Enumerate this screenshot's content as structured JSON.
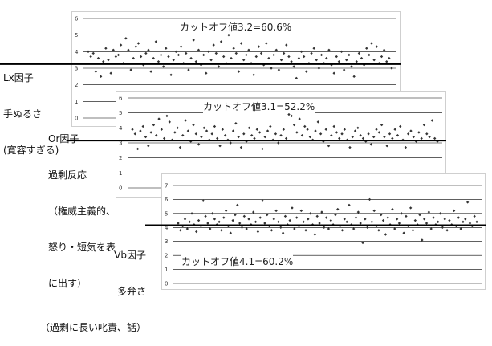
{
  "chart_data": [
    {
      "type": "scatter",
      "annotation": "カットオフ値3.2=60.6%",
      "cutoff": 3.2,
      "ylim": [
        0,
        6
      ],
      "yticks": [
        "0",
        "1",
        "2",
        "3",
        "4",
        "5",
        "6"
      ],
      "side_label": [
        "Lx因子",
        "手ぬるさ",
        "(寛容すぎる)"
      ],
      "points": [
        4,
        3.7,
        3.9,
        2.8,
        3.6,
        2.5,
        3.4,
        4.2,
        3.5,
        2.7,
        4.1,
        3.7,
        3.8,
        4.4,
        3.3,
        4.8,
        4.1,
        2.9,
        3.6,
        4.3,
        4.5,
        3.7,
        3.2,
        3.9,
        4.1,
        2.8,
        3.6,
        4.6,
        3.4,
        3.8,
        3.1,
        4.2,
        3.7,
        2.6,
        3.5,
        4,
        3.8,
        4.3,
        3.3,
        3.9,
        2.9,
        3.6,
        4.7,
        3.4,
        4.1,
        3.2,
        3.8,
        2.7,
        4,
        3.5,
        4.4,
        3.9,
        3.1,
        4.6,
        3.7,
        3.3,
        5,
        3.6,
        4.2,
        3.9,
        2.8,
        4.5,
        3.5,
        3.8,
        4.1,
        3.3,
        2.6,
        3.7,
        4.3,
        3.9,
        3.2,
        4.5,
        3.6,
        3,
        3.8,
        4.1,
        2.9,
        3.5,
        3.9,
        4.4,
        3.7,
        3.4,
        3.1,
        2.4,
        3.6,
        4,
        3.7,
        2.8,
        3.3,
        3.9,
        4.2,
        3.5,
        3,
        3.8,
        3.3,
        3.6,
        4.1,
        3.2,
        2.7,
        3.7,
        3.4,
        4,
        2.9,
        3.5,
        3.8,
        3.1,
        2.5,
        3.4,
        3.9,
        3.6,
        3.2,
        4.2,
        3.8,
        4.5,
        3.5,
        4.3,
        3.3,
        3.7,
        4.1,
        3.4,
        3.6,
        3
      ]
    },
    {
      "type": "scatter",
      "annotation": "カットオフ値3.1=52.2%",
      "cutoff": 3.1,
      "ylim": [
        0,
        6
      ],
      "yticks": [
        "0",
        "1",
        "2",
        "3",
        "4",
        "5",
        "6"
      ],
      "side_label": [
        "Or因子",
        "過剰反応",
        "（権威主義的、",
        "怒り・短気を表",
        "に出す）"
      ],
      "points": [
        3.9,
        3.6,
        2.6,
        3.8,
        4.1,
        3.4,
        2.8,
        3.7,
        4.2,
        3.5,
        4.6,
        3.9,
        3.3,
        4.8,
        4.4,
        3.2,
        3.7,
        4,
        2.7,
        3.5,
        4.5,
        3.8,
        3.1,
        4.2,
        3.6,
        2.9,
        3.4,
        4,
        3.8,
        3.2,
        3.6,
        4.1,
        3.3,
        2.8,
        3.9,
        3.5,
        3.2,
        3,
        3.8,
        4.3,
        3.4,
        2.7,
        3.6,
        3.1,
        4,
        3.5,
        3.3,
        3.9,
        3.7,
        2.6,
        3.4,
        3.8,
        4.1,
        3.2,
        3.6,
        3,
        3.5,
        3.9,
        3.3,
        4.9,
        4.8,
        4.2,
        3.7,
        4.6,
        3.5,
        4.1,
        3.9,
        3.4,
        3.2,
        3.8,
        4.4,
        3.6,
        3.1,
        3.9,
        2.8,
        3.5,
        4.1,
        3.7,
        3.3,
        3.6,
        3.9,
        3.2,
        2.7,
        3.4,
        3.8,
        4,
        3.5,
        3.3,
        3.1,
        3.6,
        2.9,
        3.4,
        3.9,
        3.7,
        4.2,
        3.4,
        2.8,
        3.6,
        3.3,
        3.9,
        3.5,
        4.1,
        3.2,
        2.7,
        3.6,
        3.8,
        3.4,
        3.1,
        3.7,
        3.3,
        4.2,
        3.6,
        3.4,
        4.5,
        3.3,
        3.1
      ]
    },
    {
      "type": "scatter",
      "annotation": "カットオフ値4.1=60.2%",
      "cutoff": 4.1,
      "ylim": [
        0,
        7
      ],
      "yticks": [
        "0",
        "1",
        "2",
        "3",
        "4",
        "5",
        "6",
        "7"
      ],
      "side_label": [
        "Vb因子",
        "多弁さ",
        "（過剰に長い叱責、話）"
      ],
      "points": [
        4.3,
        3.8,
        4.1,
        4.6,
        3.9,
        4.4,
        5,
        4.2,
        3.7,
        4.5,
        4.1,
        5.9,
        4.8,
        4.3,
        3.9,
        5,
        4.6,
        4.2,
        4.4,
        3.8,
        4.7,
        5.2,
        4.1,
        3.6,
        4.5,
        4.9,
        5.6,
        4.3,
        4,
        4.8,
        3.9,
        4.6,
        4.2,
        5.1,
        4.4,
        3.7,
        4.7,
        5.9,
        4.3,
        4.9,
        4.1,
        3.8,
        4.6,
        5.2,
        4.4,
        4,
        3.6,
        4.8,
        4.2,
        4.5,
        5.4,
        3.9,
        4.7,
        4.1,
        5.2,
        4.4,
        3.8,
        4.6,
        5,
        4.2,
        3.5,
        4.8,
        4.3,
        5.1,
        4,
        4.7,
        3.9,
        4.5,
        4.2,
        4.9,
        5.3,
        4.1,
        3.8,
        4.6,
        4.4,
        5.6,
        4.2,
        3.9,
        4.7,
        5.1,
        4.3,
        2.9,
        4.6,
        4,
        6,
        4.4,
        5.2,
        4.1,
        3.8,
        4.9,
        4.5,
        3.5,
        4.7,
        4.2,
        5.3,
        3.9,
        4.6,
        4.3,
        5,
        3.6,
        4.8,
        4.1,
        5.4,
        3.8,
        4.5,
        4.2,
        4.9,
        3.1,
        4.6,
        4.3,
        5.1,
        3.9,
        4.7,
        4.2,
        4.4,
        5,
        4,
        4.6,
        3.8,
        4.5,
        4.2,
        5.2,
        4.1,
        4.7,
        3.9,
        4.4,
        4.6,
        5.8,
        4.3,
        4.1,
        4.8,
        4.4
      ]
    }
  ]
}
